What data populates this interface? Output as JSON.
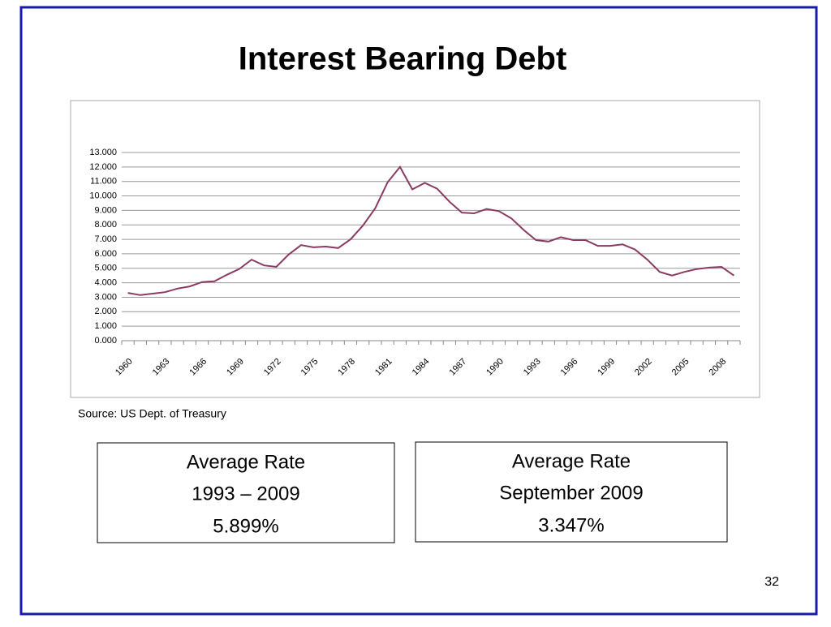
{
  "chart_data": {
    "type": "line",
    "title": "Interest Bearing Debt",
    "categories": [
      "1960",
      null,
      null,
      "1963",
      null,
      null,
      "1966",
      null,
      null,
      "1969",
      null,
      null,
      "1972",
      null,
      null,
      "1975",
      null,
      null,
      "1978",
      null,
      null,
      "1981",
      null,
      null,
      "1984",
      null,
      null,
      "1987",
      null,
      null,
      "1990",
      null,
      null,
      "1993",
      null,
      null,
      "1996",
      null,
      null,
      "1999",
      null,
      null,
      "2002",
      null,
      null,
      "2005",
      null,
      null,
      "2008",
      null
    ],
    "series": [
      {
        "color": "#8b3a62",
        "values": [
          3.3,
          3.15,
          3.25,
          3.35,
          3.6,
          3.75,
          4.05,
          4.1,
          4.55,
          4.95,
          5.6,
          5.2,
          5.1,
          5.95,
          6.6,
          6.45,
          6.5,
          6.4,
          7.0,
          7.95,
          9.15,
          10.95,
          12.0,
          10.45,
          10.9,
          10.5,
          9.6,
          8.85,
          8.8,
          9.1,
          8.95,
          8.45,
          7.65,
          6.95,
          6.85,
          7.15,
          6.95,
          6.95,
          6.55,
          6.55,
          6.65,
          6.3,
          5.6,
          4.75,
          4.5,
          4.75,
          4.95,
          5.05,
          5.1,
          4.5
        ]
      }
    ],
    "ylim": [
      0,
      13
    ],
    "yticks": [
      {
        "value": 0,
        "label": "0.000"
      },
      {
        "value": 1,
        "label": "1.000"
      },
      {
        "value": 2,
        "label": "2.000"
      },
      {
        "value": 3,
        "label": "3.000"
      },
      {
        "value": 4,
        "label": "4.000"
      },
      {
        "value": 5,
        "label": "5.000"
      },
      {
        "value": 6,
        "label": "6.000"
      },
      {
        "value": 7,
        "label": "7.000"
      },
      {
        "value": 8,
        "label": "8.000"
      },
      {
        "value": 9,
        "label": "9.000"
      },
      {
        "value": 10,
        "label": "10.000"
      },
      {
        "value": 11,
        "label": "11.000"
      },
      {
        "value": 12,
        "label": "12.000"
      },
      {
        "value": 13,
        "label": "13.000"
      }
    ],
    "grid": true
  },
  "slide": {
    "source": "Source:  US Dept. of Treasury",
    "boxes": [
      {
        "lines": [
          "Average Rate",
          "1993 – 2009",
          "5.899%"
        ]
      },
      {
        "lines": [
          "Average Rate",
          "September 2009",
          "3.347%"
        ]
      }
    ],
    "page": "32"
  }
}
